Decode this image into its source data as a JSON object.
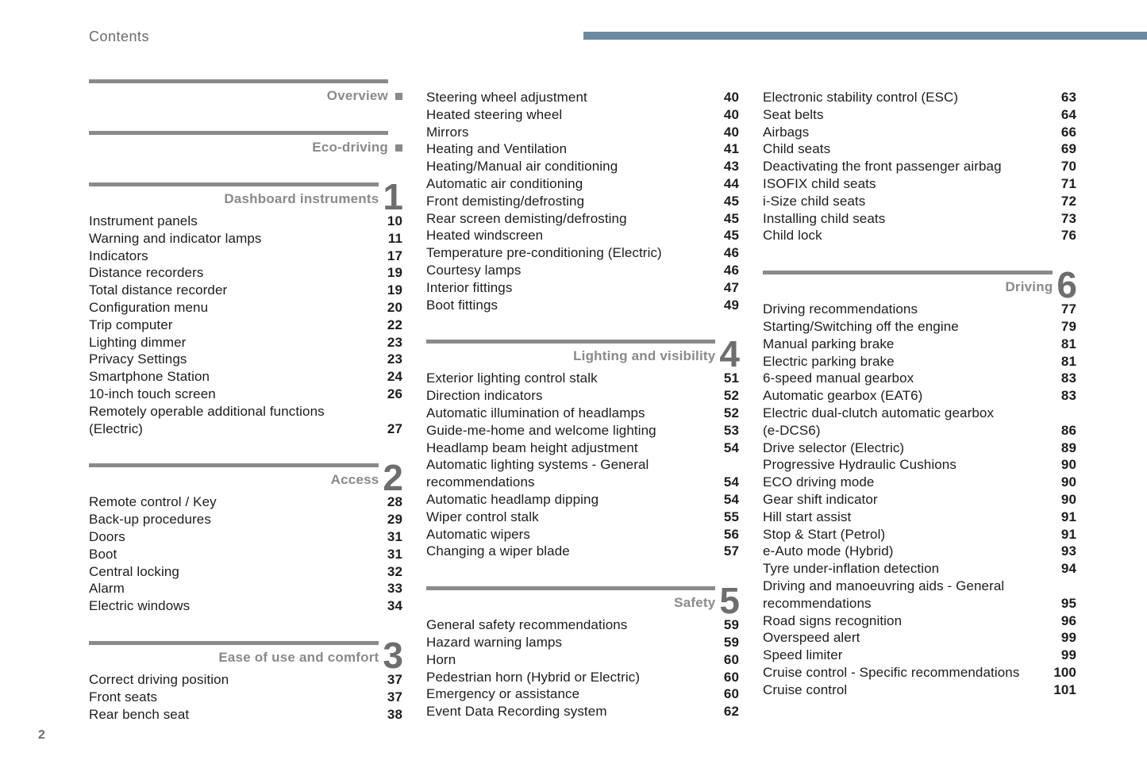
{
  "page": {
    "title": "Contents",
    "page_number": "2"
  },
  "colors": {
    "accent_bar": "#6b8aa1",
    "rule": "#8a8a8a",
    "heading": "#8a8a8a",
    "section_numeral": "#6e6e6e",
    "body_text": "#1d1d1b"
  },
  "icons": {
    "square_bullet": "filled-square"
  },
  "columns": [
    {
      "blocks": [
        {
          "kind": "label",
          "title": "Overview"
        },
        {
          "kind": "label",
          "title": "Eco-driving"
        },
        {
          "kind": "section",
          "title": "Dashboard instruments",
          "num": "1",
          "items": [
            {
              "label": "Instrument panels",
              "page": "10"
            },
            {
              "label": "Warning and indicator lamps",
              "page": "11"
            },
            {
              "label": "Indicators",
              "page": "17"
            },
            {
              "label": "Distance recorders",
              "page": "19"
            },
            {
              "label": "Total distance recorder",
              "page": "19"
            },
            {
              "label": "Configuration menu",
              "page": "20"
            },
            {
              "label": "Trip computer",
              "page": "22"
            },
            {
              "label": "Lighting dimmer",
              "page": "23"
            },
            {
              "label": "Privacy Settings",
              "page": "23"
            },
            {
              "label": "Smartphone Station",
              "page": "24"
            },
            {
              "label": "10-inch touch screen",
              "page": "26"
            },
            {
              "label": "Remotely operable additional functions\n(Electric)",
              "page": "27"
            }
          ]
        },
        {
          "kind": "section",
          "title": "Access",
          "num": "2",
          "items": [
            {
              "label": "Remote control / Key",
              "page": "28"
            },
            {
              "label": "Back-up procedures",
              "page": "29"
            },
            {
              "label": "Doors",
              "page": "31"
            },
            {
              "label": "Boot",
              "page": "31"
            },
            {
              "label": "Central locking",
              "page": "32"
            },
            {
              "label": "Alarm",
              "page": "33"
            },
            {
              "label": "Electric windows",
              "page": "34"
            }
          ]
        },
        {
          "kind": "section",
          "title": "Ease of use and comfort",
          "num": "3",
          "items": [
            {
              "label": "Correct driving position",
              "page": "37"
            },
            {
              "label": "Front seats",
              "page": "37"
            },
            {
              "label": "Rear bench seat",
              "page": "38"
            }
          ]
        }
      ]
    },
    {
      "blocks": [
        {
          "kind": "items",
          "items": [
            {
              "label": "Steering wheel adjustment",
              "page": "40"
            },
            {
              "label": "Heated steering wheel",
              "page": "40"
            },
            {
              "label": "Mirrors",
              "page": "40"
            },
            {
              "label": "Heating and Ventilation",
              "page": "41"
            },
            {
              "label": "Heating/Manual air conditioning",
              "page": "43"
            },
            {
              "label": "Automatic air conditioning",
              "page": "44"
            },
            {
              "label": "Front demisting/defrosting",
              "page": "45"
            },
            {
              "label": "Rear screen demisting/defrosting",
              "page": "45"
            },
            {
              "label": "Heated windscreen",
              "page": "45"
            },
            {
              "label": "Temperature pre-conditioning (Electric)",
              "page": "46"
            },
            {
              "label": "Courtesy lamps",
              "page": "46"
            },
            {
              "label": "Interior fittings",
              "page": "47"
            },
            {
              "label": "Boot fittings",
              "page": "49"
            }
          ]
        },
        {
          "kind": "section",
          "title": "Lighting and visibility",
          "num": "4",
          "items": [
            {
              "label": "Exterior lighting control stalk",
              "page": "51"
            },
            {
              "label": "Direction indicators",
              "page": "52"
            },
            {
              "label": "Automatic illumination of headlamps",
              "page": "52"
            },
            {
              "label": "Guide-me-home and welcome lighting",
              "page": "53"
            },
            {
              "label": "Headlamp beam height adjustment",
              "page": "54"
            },
            {
              "label": "Automatic lighting systems - General\nrecommendations",
              "page": "54"
            },
            {
              "label": "Automatic headlamp dipping",
              "page": "54"
            },
            {
              "label": "Wiper control stalk",
              "page": "55"
            },
            {
              "label": "Automatic wipers",
              "page": "56"
            },
            {
              "label": "Changing a wiper blade",
              "page": "57"
            }
          ]
        },
        {
          "kind": "section",
          "title": "Safety",
          "num": "5",
          "items": [
            {
              "label": "General safety recommendations",
              "page": "59"
            },
            {
              "label": "Hazard warning lamps",
              "page": "59"
            },
            {
              "label": "Horn",
              "page": "60"
            },
            {
              "label": "Pedestrian horn (Hybrid or Electric)",
              "page": "60"
            },
            {
              "label": "Emergency or assistance",
              "page": "60"
            },
            {
              "label": "Event Data Recording system",
              "page": "62"
            }
          ]
        }
      ]
    },
    {
      "blocks": [
        {
          "kind": "items",
          "items": [
            {
              "label": "Electronic stability control (ESC)",
              "page": "63"
            },
            {
              "label": "Seat belts",
              "page": "64"
            },
            {
              "label": "Airbags",
              "page": "66"
            },
            {
              "label": "Child seats",
              "page": "69"
            },
            {
              "label": "Deactivating the front passenger airbag",
              "page": "70"
            },
            {
              "label": "ISOFIX child seats",
              "page": "71"
            },
            {
              "label": "i-Size child seats",
              "page": "72"
            },
            {
              "label": "Installing child seats",
              "page": "73"
            },
            {
              "label": "Child lock",
              "page": "76"
            }
          ]
        },
        {
          "kind": "section",
          "title": "Driving",
          "num": "6",
          "items": [
            {
              "label": "Driving recommendations",
              "page": "77"
            },
            {
              "label": "Starting/Switching off the engine",
              "page": "79"
            },
            {
              "label": "Manual parking brake",
              "page": "81"
            },
            {
              "label": "Electric parking brake",
              "page": "81"
            },
            {
              "label": "6-speed manual gearbox",
              "page": "83"
            },
            {
              "label": "Automatic gearbox (EAT6)",
              "page": "83"
            },
            {
              "label": "Electric dual-clutch automatic gearbox\n(e-DCS6)",
              "page": "86"
            },
            {
              "label": "Drive selector (Electric)",
              "page": "89"
            },
            {
              "label": "Progressive Hydraulic Cushions",
              "page": "90"
            },
            {
              "label": "ECO driving mode",
              "page": "90"
            },
            {
              "label": "Gear shift indicator",
              "page": "90"
            },
            {
              "label": "Hill start assist",
              "page": "91"
            },
            {
              "label": "Stop & Start (Petrol)",
              "page": "91"
            },
            {
              "label": "e-Auto mode (Hybrid)",
              "page": "93"
            },
            {
              "label": "Tyre under-inflation detection",
              "page": "94"
            },
            {
              "label": "Driving and manoeuvring aids - General\nrecommendations",
              "page": "95"
            },
            {
              "label": "Road signs recognition",
              "page": "96"
            },
            {
              "label": "Overspeed alert",
              "page": "99"
            },
            {
              "label": "Speed limiter",
              "page": "99"
            },
            {
              "label": "Cruise control - Specific recommendations",
              "page": "100"
            },
            {
              "label": "Cruise control",
              "page": "101"
            }
          ]
        }
      ]
    }
  ]
}
